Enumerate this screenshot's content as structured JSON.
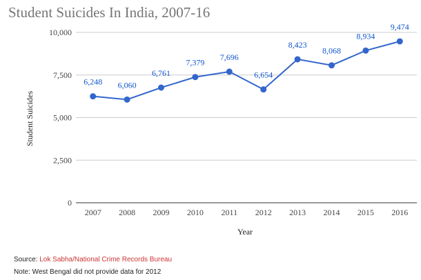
{
  "chart_data": {
    "type": "line",
    "title": "Student Suicides In India, 2007-16",
    "xlabel": "Year",
    "ylabel": "Student Suicides",
    "ylim": [
      0,
      10000
    ],
    "yticks": [
      "0",
      "2,500",
      "5,000",
      "7,500",
      "10,000"
    ],
    "ytick_values": [
      0,
      2500,
      5000,
      7500,
      10000
    ],
    "categories": [
      "2007",
      "2008",
      "2009",
      "2010",
      "2011",
      "2012",
      "2013",
      "2014",
      "2015",
      "2016"
    ],
    "values": [
      6248,
      6060,
      6761,
      7379,
      7696,
      6654,
      8423,
      8068,
      8934,
      9474
    ],
    "value_labels": [
      "6,248",
      "6,060",
      "6,761",
      "7,379",
      "7,696",
      "6,654",
      "8,423",
      "8,068",
      "8,934",
      "9,474"
    ],
    "line_color": "#3366cc",
    "label_color": "#1155cc",
    "grid": true
  },
  "footer": {
    "source_prefix": "Source: ",
    "source_link1": "Lok Sabha",
    "source_sep": "/",
    "source_link2": "National Crime Records Bureau",
    "note": "Note: West Bengal did not provide data for 2012"
  }
}
